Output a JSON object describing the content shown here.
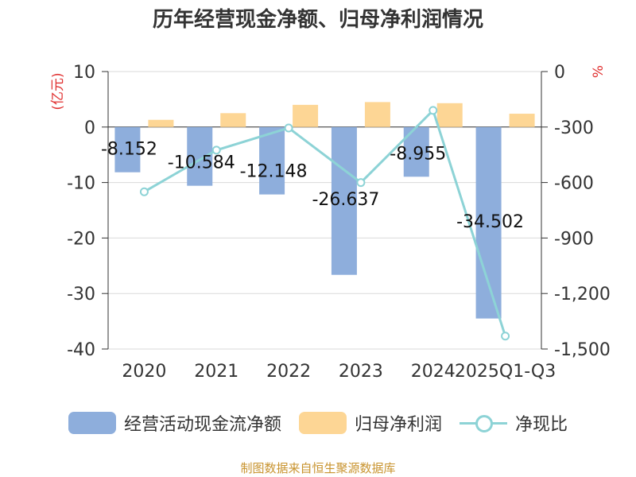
{
  "title": "历年经营现金净额、归母净利润情况",
  "source": "制图数据来自恒生聚源数据库",
  "colors": {
    "cash_flow": "#8eaedc",
    "net_profit": "#fdd695",
    "ratio": "#8dd3d6",
    "axis_unit": "#e03030",
    "text": "#333333",
    "grid": "#d9d9d9",
    "source": "#c8932e"
  },
  "chart_data": {
    "type": "bar",
    "title": "历年经营现金净额、归母净利润情况",
    "categories": [
      "2020",
      "2021",
      "2022",
      "2023",
      "2024",
      "2025Q1-Q3"
    ],
    "ylabel": "(亿元)",
    "y2label": "%",
    "ylim": [
      -40,
      10
    ],
    "y2lim": [
      -1500,
      0
    ],
    "yticks": [
      10,
      0,
      -10,
      -20,
      -30,
      -40
    ],
    "y2ticks": [
      "0",
      "-300",
      "-600",
      "-900",
      "-1,200",
      "-1,500"
    ],
    "y2tick_values": [
      0,
      -300,
      -600,
      -900,
      -1200,
      -1500
    ],
    "series": [
      {
        "name": "经营活动现金流净额",
        "kind": "bar",
        "axis": "left",
        "values": [
          -8.152,
          -10.584,
          -12.148,
          -26.637,
          -8.955,
          -34.502
        ],
        "labels": [
          "-8.152",
          "-10.584",
          "-12.148",
          "-26.637",
          "-8.955",
          "-34.502"
        ]
      },
      {
        "name": "归母净利润",
        "kind": "bar",
        "axis": "left",
        "values": [
          1.3,
          2.5,
          4.0,
          4.5,
          4.3,
          2.4
        ]
      },
      {
        "name": "净现比",
        "kind": "line",
        "axis": "right",
        "values": [
          -650,
          -425,
          -305,
          -600,
          -210,
          -1430
        ]
      }
    ],
    "legend": [
      "经营活动现金流净额",
      "归母净利润",
      "净现比"
    ],
    "legend_position": "bottom",
    "grid": true
  }
}
